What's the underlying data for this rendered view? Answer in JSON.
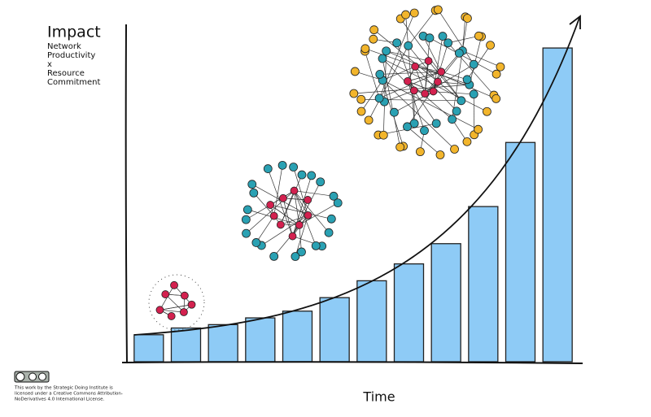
{
  "chart_data": {
    "type": "bar",
    "title": "Impact",
    "y_label_lines": [
      "Network",
      "Productivity",
      "x",
      "Resource",
      "Commitment"
    ],
    "x_label": "Time",
    "categories": [
      null,
      null,
      null,
      null,
      null,
      null,
      null,
      null,
      null,
      null,
      null,
      null
    ],
    "values": [
      8,
      10,
      11,
      13,
      15,
      19,
      24,
      29,
      35,
      46,
      65,
      93
    ],
    "color": "#8ecbf6",
    "ylim": [
      0,
      100
    ],
    "grid": false,
    "license_lines": [
      "This work by the Strategic Doing Institute is",
      "licensed under a Creative Commons Attribution-",
      "NoDerivatives 4.0 International License."
    ]
  }
}
